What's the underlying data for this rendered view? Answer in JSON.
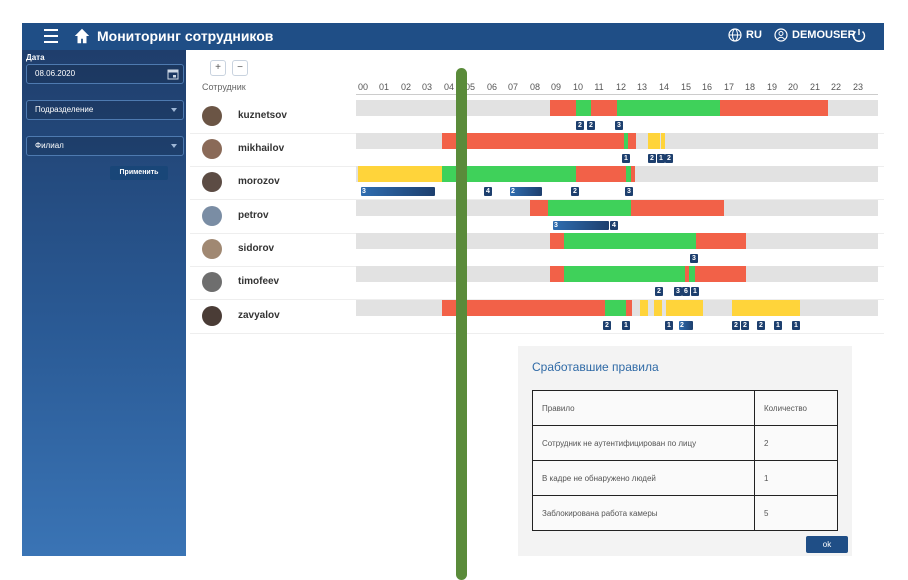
{
  "header": {
    "title": "Мониторинг сотрудников",
    "lang": "RU",
    "user": "DEMOUSER"
  },
  "sidebar": {
    "date_label": "Дата",
    "date_value": "08.06.2020",
    "department": "Подразделение",
    "branch": "Филиал",
    "apply": "Применить"
  },
  "timeline": {
    "zoom_in": "+",
    "zoom_out": "−",
    "employee_header": "Сотрудник",
    "hours": [
      "00",
      "01",
      "02",
      "03",
      "04",
      "05",
      "06",
      "07",
      "08",
      "09",
      "10",
      "11",
      "12",
      "13",
      "14",
      "15",
      "16",
      "17",
      "18",
      "19",
      "20",
      "21",
      "22",
      "23"
    ],
    "employees": [
      {
        "name": "kuznetsov",
        "badges": [
          "2",
          "2",
          "3"
        ]
      },
      {
        "name": "mikhailov",
        "badges": [
          "1",
          "2",
          "1",
          "2"
        ]
      },
      {
        "name": "morozov",
        "badges": [
          "3",
          "4",
          "2",
          "2",
          "3"
        ]
      },
      {
        "name": "petrov",
        "badges": [
          "3",
          "4"
        ]
      },
      {
        "name": "sidorov",
        "badges": [
          "3"
        ]
      },
      {
        "name": "timofeev",
        "badges": [
          "2",
          "3",
          "6",
          "1"
        ]
      },
      {
        "name": "zavyalov",
        "badges": [
          "2",
          "1",
          "1",
          "2",
          "2",
          "2",
          "2",
          "1",
          "1"
        ]
      }
    ]
  },
  "rules_panel": {
    "title": "Сработавшие правила",
    "col_rule": "Правило",
    "col_count": "Количество",
    "rows": [
      {
        "rule": "Сотрудник не аутентифицирован по лицу",
        "count": "2"
      },
      {
        "rule": "В кадре не обнаружено людей",
        "count": "1"
      },
      {
        "rule": "Заблокирована работа камеры",
        "count": "5"
      }
    ],
    "ok": "ok"
  },
  "colors": {
    "header": "#1f4e86",
    "green": "#3fd15a",
    "red": "#f26148",
    "yellow": "#ffd43a",
    "badge": "#1d3f6e"
  }
}
